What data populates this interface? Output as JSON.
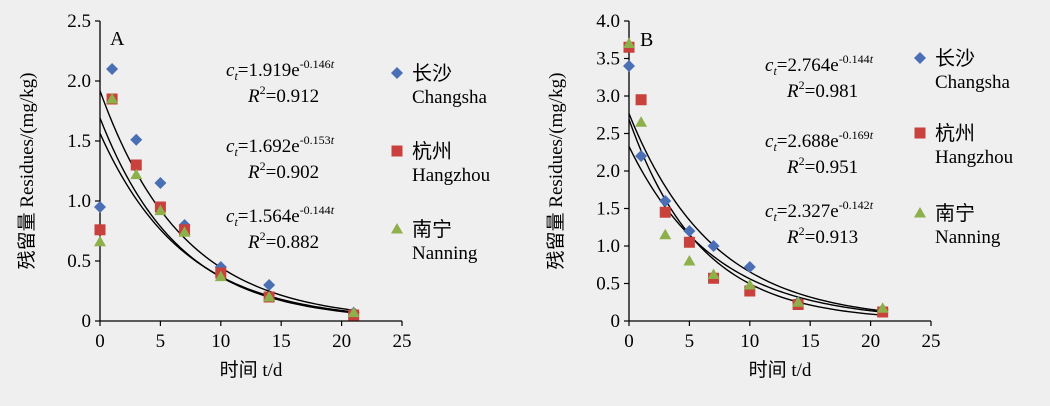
{
  "figure": {
    "legend_entries": [
      {
        "zh": "长沙",
        "en": "Changsha",
        "color": "#4a6fb5",
        "marker": "diamond"
      },
      {
        "zh": "杭州",
        "en": "Hangzhou",
        "color": "#c8413c",
        "marker": "square"
      },
      {
        "zh": "南宁",
        "en": "Nanning",
        "color": "#8db04a",
        "marker": "triangle"
      }
    ]
  },
  "chart_data": [
    {
      "type": "scatter",
      "panel_label": "A",
      "xlabel": "时间 t/d",
      "ylabel": "残留量 Residues/(mg/kg)",
      "xlim": [
        0,
        25
      ],
      "ylim": [
        0,
        2.5
      ],
      "xticks": [
        "0",
        "5",
        "10",
        "15",
        "20",
        "25"
      ],
      "yticks": [
        "0",
        "0.5",
        "1.0",
        "1.5",
        "2.0",
        "2.5"
      ],
      "grid": false,
      "legend_position": "right",
      "series": [
        {
          "name": "长沙 Changsha",
          "x": [
            0,
            1,
            3,
            5,
            7,
            10,
            14,
            21
          ],
          "y": [
            0.95,
            2.1,
            1.51,
            1.15,
            0.8,
            0.45,
            0.3,
            0.07
          ],
          "fit": {
            "a": 1.919,
            "k": 0.146
          },
          "eq_coef": "1.919",
          "eq_exp": "-0.146",
          "r2": "0.912"
        },
        {
          "name": "杭州 Hangzhou",
          "x": [
            0,
            1,
            3,
            5,
            7,
            10,
            14,
            21
          ],
          "y": [
            0.76,
            1.85,
            1.3,
            0.95,
            0.76,
            0.4,
            0.2,
            0.05
          ],
          "fit": {
            "a": 1.692,
            "k": 0.153
          },
          "eq_coef": "1.692",
          "eq_exp": "-0.153",
          "r2": "0.902"
        },
        {
          "name": "南宁 Nanning",
          "x": [
            0,
            1,
            3,
            5,
            7,
            10,
            14,
            21
          ],
          "y": [
            0.66,
            1.85,
            1.22,
            0.92,
            0.74,
            0.37,
            0.2,
            0.07
          ],
          "fit": {
            "a": 1.564,
            "k": 0.144
          },
          "eq_coef": "1.564",
          "eq_exp": "-0.144",
          "r2": "0.882"
        }
      ]
    },
    {
      "type": "scatter",
      "panel_label": "B",
      "xlabel": "时间 t/d",
      "ylabel": "残留量 Residues/(mg/kg)",
      "xlim": [
        0,
        25
      ],
      "ylim": [
        0,
        4.0
      ],
      "xticks": [
        "0",
        "5",
        "10",
        "15",
        "20",
        "25"
      ],
      "yticks": [
        "0",
        "0.5",
        "1.0",
        "1.5",
        "2.0",
        "2.5",
        "3.0",
        "3.5",
        "4.0"
      ],
      "grid": false,
      "legend_position": "right",
      "series": [
        {
          "name": "长沙 Changsha",
          "x": [
            0,
            1,
            3,
            5,
            7,
            10,
            14,
            21
          ],
          "y": [
            3.4,
            2.2,
            1.6,
            1.2,
            1.0,
            0.72,
            0.25,
            0.15
          ],
          "fit": {
            "a": 2.764,
            "k": 0.144
          },
          "eq_coef": "2.764",
          "eq_exp": "-0.144",
          "r2": "0.981"
        },
        {
          "name": "杭州 Hangzhou",
          "x": [
            0,
            1,
            3,
            5,
            7,
            10,
            14,
            21
          ],
          "y": [
            3.65,
            2.95,
            1.45,
            1.05,
            0.57,
            0.4,
            0.22,
            0.12
          ],
          "fit": {
            "a": 2.688,
            "k": 0.169
          },
          "eq_coef": "2.688",
          "eq_exp": "-0.169",
          "r2": "0.951"
        },
        {
          "name": "南宁 Nanning",
          "x": [
            0,
            1,
            3,
            5,
            7,
            10,
            14,
            21
          ],
          "y": [
            3.7,
            2.65,
            1.15,
            0.8,
            0.62,
            0.48,
            0.25,
            0.17
          ],
          "fit": {
            "a": 2.327,
            "k": 0.142
          },
          "eq_coef": "2.327",
          "eq_exp": "-0.142",
          "r2": "0.913"
        }
      ]
    }
  ]
}
